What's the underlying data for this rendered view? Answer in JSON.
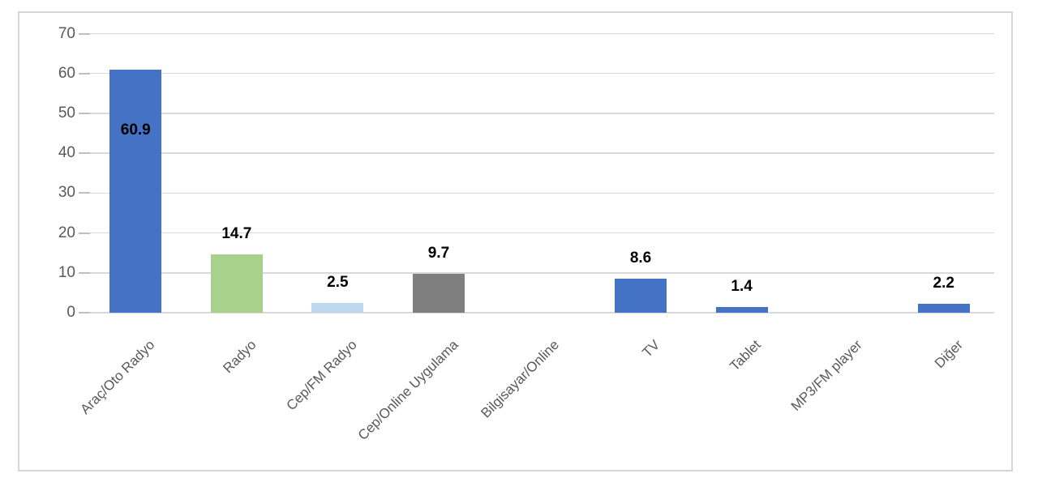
{
  "chart_data": {
    "type": "bar",
    "title": "",
    "xlabel": "",
    "ylabel": "",
    "categories": [
      "Araç/Oto Radyo",
      "Radyo",
      "Cep/FM Radyo",
      "Cep/Online Uygulama",
      "Bilgisayar/Online",
      "TV",
      "Tablet",
      "MP3/FM player",
      "Diğer"
    ],
    "values": [
      60.9,
      14.7,
      2.5,
      9.7,
      null,
      8.6,
      1.4,
      null,
      2.2
    ],
    "data_labels": [
      "60.9",
      "14.7",
      "2.5",
      "9.7",
      "",
      "8.6",
      "1.4",
      "",
      "2.2"
    ],
    "label_placement": [
      "inside-top",
      "outside",
      "outside",
      "outside",
      "",
      "outside",
      "outside",
      "",
      "outside"
    ],
    "bar_colors": [
      "#4472C4",
      "#A9D18E",
      "#BDD7EE",
      "#7F7F7F",
      "",
      "#4472C4",
      "#4472C4",
      "",
      "#4472C4"
    ],
    "ylim": [
      0,
      70
    ],
    "yticks": [
      0,
      10,
      20,
      30,
      40,
      50,
      60,
      70
    ],
    "x_tick_rotation_deg": 45,
    "grid": true,
    "legend": false
  },
  "style": {
    "gridline_color": "#D9D9D9",
    "tick_color": "#BFBFBF",
    "axis_text_color": "#595959",
    "data_label_color": "#000000",
    "frame_border_color": "#D6D6D6",
    "background_color": "#FFFFFF"
  }
}
